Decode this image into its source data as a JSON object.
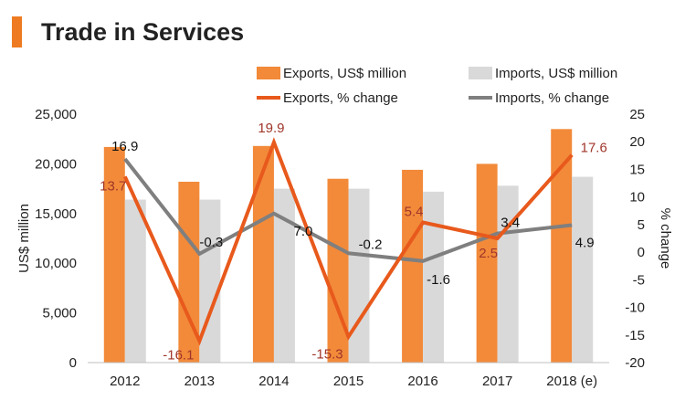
{
  "title": "Trade in Services",
  "colors": {
    "accent": "#ee7b21",
    "exports_bar": "#f28a3a",
    "imports_bar": "#d9d9d9",
    "exports_line": "#e8591c",
    "imports_line": "#7f7f7f",
    "exports_label": "#a0362a",
    "imports_label": "#111111",
    "axis_text": "#222222",
    "axis_line": "#bfbfbf"
  },
  "chart_data": {
    "type": "bar",
    "categories": [
      "2012",
      "2013",
      "2014",
      "2015",
      "2016",
      "2017",
      "2018 (e)"
    ],
    "ylabel": "US$ million",
    "ylabel_right": "% change",
    "ylim": [
      0,
      25000
    ],
    "ylim_right": [
      -20,
      25
    ],
    "yticks": [
      "0",
      "5,000",
      "10,000",
      "15,000",
      "20,000",
      "25,000"
    ],
    "yticks_right": [
      "-20",
      "-15",
      "-10",
      "-5",
      "0",
      "5",
      "10",
      "15",
      "20",
      "25"
    ],
    "grid": false,
    "legend_position": "top",
    "series": [
      {
        "name": "Exports, US$ million",
        "type": "bar",
        "axis": "left",
        "values": [
          21700,
          18200,
          21800,
          18500,
          19400,
          20000,
          23500
        ]
      },
      {
        "name": "Imports, US$ million",
        "type": "bar",
        "axis": "left",
        "values": [
          16400,
          16400,
          17500,
          17500,
          17200,
          17800,
          18700
        ]
      },
      {
        "name": "Exports, % change",
        "type": "line",
        "axis": "right",
        "values": [
          13.7,
          -16.1,
          19.9,
          -15.3,
          5.4,
          2.5,
          17.6
        ],
        "labels": [
          "13.7",
          "-16.1",
          "19.9",
          "-15.3",
          "5.4",
          "2.5",
          "17.6"
        ]
      },
      {
        "name": "Imports, % change",
        "type": "line",
        "axis": "right",
        "values": [
          16.9,
          -0.3,
          7.0,
          -0.2,
          -1.6,
          3.4,
          4.9
        ],
        "labels": [
          "16.9",
          "-0.3",
          "7.0",
          "-0.2",
          "-1.6",
          "3.4",
          "4.9"
        ]
      }
    ]
  }
}
